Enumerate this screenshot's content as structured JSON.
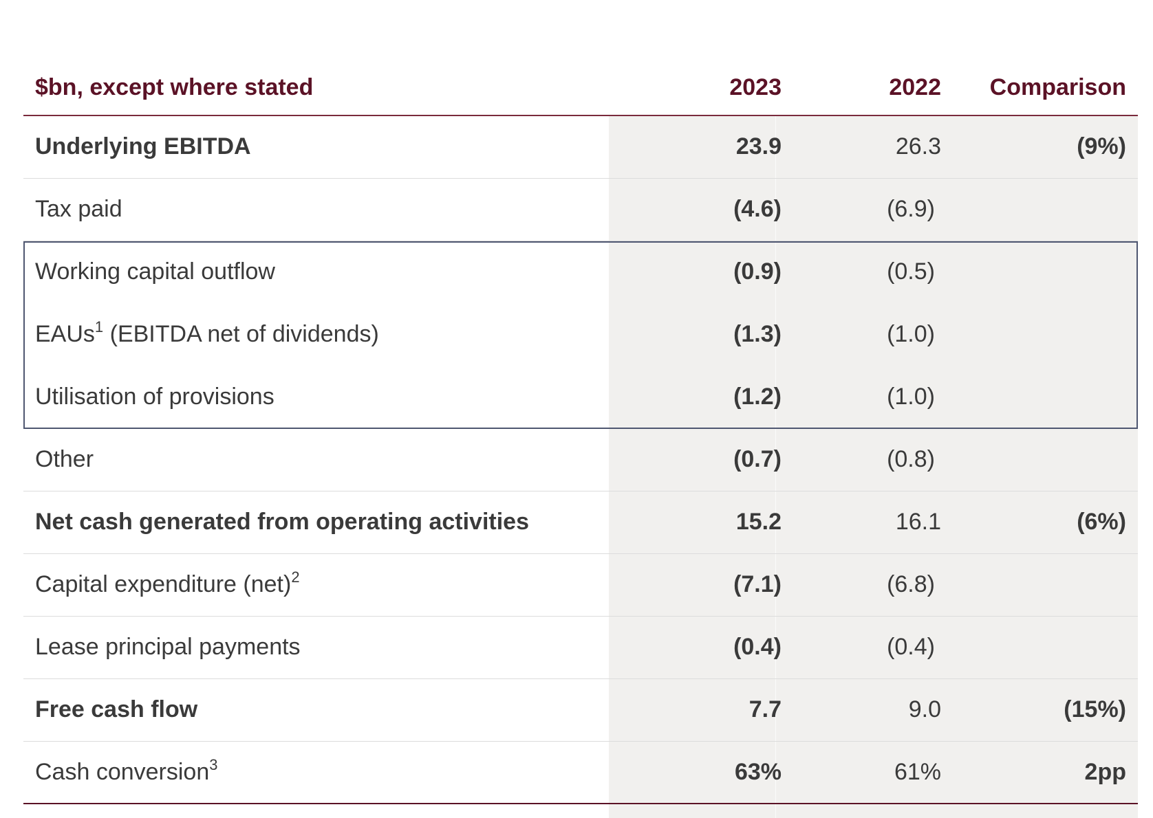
{
  "header": {
    "label": "$bn, except where stated",
    "year_current": "2023",
    "year_prior": "2022",
    "comparison": "Comparison"
  },
  "rows": [
    {
      "label": "Underlying EBITDA",
      "sup": "",
      "v2023": "23.9",
      "v2022": "26.3",
      "comparison": "(9%)",
      "bold": true
    },
    {
      "label": "Tax paid",
      "sup": "",
      "v2023": "(4.6)",
      "v2022": "(6.9)",
      "comparison": "",
      "bold": false
    },
    {
      "label": "Working capital outflow",
      "sup": "",
      "v2023": "(0.9)",
      "v2022": "(0.5)",
      "comparison": "",
      "bold": false
    },
    {
      "label": "EAUs",
      "sup": "1",
      "label_suffix": " (EBITDA net of dividends)",
      "v2023": "(1.3)",
      "v2022": "(1.0)",
      "comparison": "",
      "bold": false
    },
    {
      "label": "Utilisation of provisions",
      "sup": "",
      "v2023": "(1.2)",
      "v2022": "(1.0)",
      "comparison": "",
      "bold": false
    },
    {
      "label": "Other",
      "sup": "",
      "v2023": "(0.7)",
      "v2022": "(0.8)",
      "comparison": "",
      "bold": false
    },
    {
      "label": "Net cash generated from operating activities",
      "sup": "",
      "v2023": "15.2",
      "v2022": "16.1",
      "comparison": "(6%)",
      "bold": true
    },
    {
      "label": "Capital expenditure (net)",
      "sup": "2",
      "v2023": "(7.1)",
      "v2022": "(6.8)",
      "comparison": "",
      "bold": false
    },
    {
      "label": "Lease principal payments",
      "sup": "",
      "v2023": "(0.4)",
      "v2022": "(0.4)",
      "comparison": "",
      "bold": false
    },
    {
      "label": "Free cash flow",
      "sup": "",
      "v2023": "7.7",
      "v2022": "9.0",
      "comparison": "(15%)",
      "bold": true
    },
    {
      "label": "Cash conversion",
      "sup": "3",
      "v2023": "63%",
      "v2022": "61%",
      "comparison": "2pp",
      "bold": false
    }
  ]
}
